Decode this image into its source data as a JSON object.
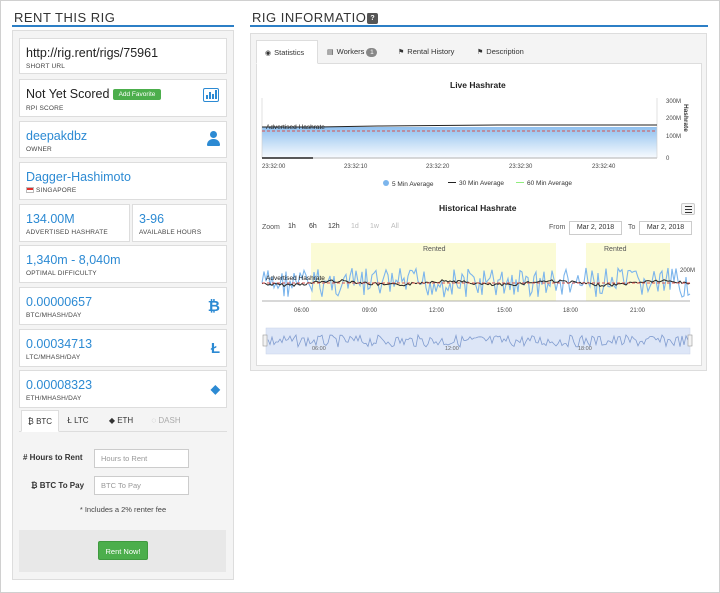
{
  "rent_section": {
    "title": "RENT THIS RIG",
    "short_url": {
      "value": "http://rig.rent/rigs/75961",
      "label": "SHORT URL"
    },
    "rpi": {
      "value": "Not Yet Scored",
      "label": "RPI SCORE",
      "favorite_button": "Add Favorite"
    },
    "owner": {
      "value": "deepakdbz",
      "label": "OWNER"
    },
    "algorithm": {
      "value": "Dagger-Hashimoto",
      "location": "SINGAPORE"
    },
    "advertised_hashrate": {
      "value": "134.00M",
      "label": "ADVERTISED HASHRATE"
    },
    "available_hours": {
      "value": "3-96",
      "label": "AVAILABLE HOURS"
    },
    "optimal_difficulty": {
      "value": "1,340m - 8,040m",
      "label": "OPTIMAL DIFFICULTY"
    },
    "prices": [
      {
        "value": "0.00000657",
        "label": "BTC/MHASH/DAY",
        "icon": "bitcoin-icon",
        "glyph": "₿"
      },
      {
        "value": "0.00034713",
        "label": "LTC/MHASH/DAY",
        "icon": "litecoin-icon",
        "glyph": "Ł"
      },
      {
        "value": "0.00008323",
        "label": "ETH/MHASH/DAY",
        "icon": "ethereum-icon",
        "glyph": "◆"
      }
    ],
    "currency_tabs": [
      {
        "label": "₿ BTC",
        "active": true
      },
      {
        "label": "Ł LTC",
        "active": false
      },
      {
        "label": "◆ ETH",
        "active": false
      },
      {
        "label": "◌ DASH",
        "active": false,
        "disabled": true
      }
    ],
    "form": {
      "hours_label": "# Hours to Rent",
      "hours_placeholder": "Hours to Rent",
      "btc_label": "₿ BTC To Pay",
      "btc_placeholder": "BTC To Pay",
      "fee_note": "* Includes a 2% renter fee",
      "rent_button": "Rent Now!"
    }
  },
  "rig_info": {
    "title": "RIG INFORMATION",
    "help": "?",
    "tabs": [
      {
        "label": "Statistics",
        "icon": "dashboard-icon",
        "active": true
      },
      {
        "label": "Workers",
        "icon": "list-icon",
        "badge": "1"
      },
      {
        "label": "Rental History",
        "icon": "flag-icon"
      },
      {
        "label": "Description",
        "icon": "flag-icon"
      }
    ]
  },
  "live_chart": {
    "title": "Live Hashrate",
    "y_axis_title": "Hashrate",
    "y_ticks": [
      "300M",
      "200M",
      "100M",
      "0"
    ],
    "x_ticks": [
      "23:32:00",
      "23:32:10",
      "23:32:20",
      "23:32:30",
      "23:32:40"
    ],
    "annotation": "Advertised Hashrate",
    "legend": [
      {
        "name": "5 Min Average",
        "color": "#7cb5ec"
      },
      {
        "name": "30 Min Average",
        "color": "#222222"
      },
      {
        "name": "60 Min Average",
        "color": "#90ed7d"
      }
    ]
  },
  "historical_chart": {
    "title": "Historical Hashrate",
    "zoom_label": "Zoom",
    "zoom_buttons": [
      {
        "label": "1h",
        "disabled": false
      },
      {
        "label": "6h",
        "disabled": false
      },
      {
        "label": "12h",
        "disabled": false
      },
      {
        "label": "1d",
        "disabled": true
      },
      {
        "label": "1w",
        "disabled": true
      },
      {
        "label": "All",
        "disabled": true
      }
    ],
    "from_label": "From",
    "from_value": "Mar 2, 2018",
    "to_label": "To",
    "to_value": "Mar 2, 2018",
    "band_label_1": "Rented",
    "band_label_2": "Rented",
    "annotation": "Advertised Hashrate",
    "y_tick": "200M",
    "x_ticks": [
      "06:00",
      "09:00",
      "12:00",
      "15:00",
      "18:00",
      "21:00"
    ],
    "nav_ticks": [
      "06:00",
      "12:00",
      "18:00"
    ]
  }
}
